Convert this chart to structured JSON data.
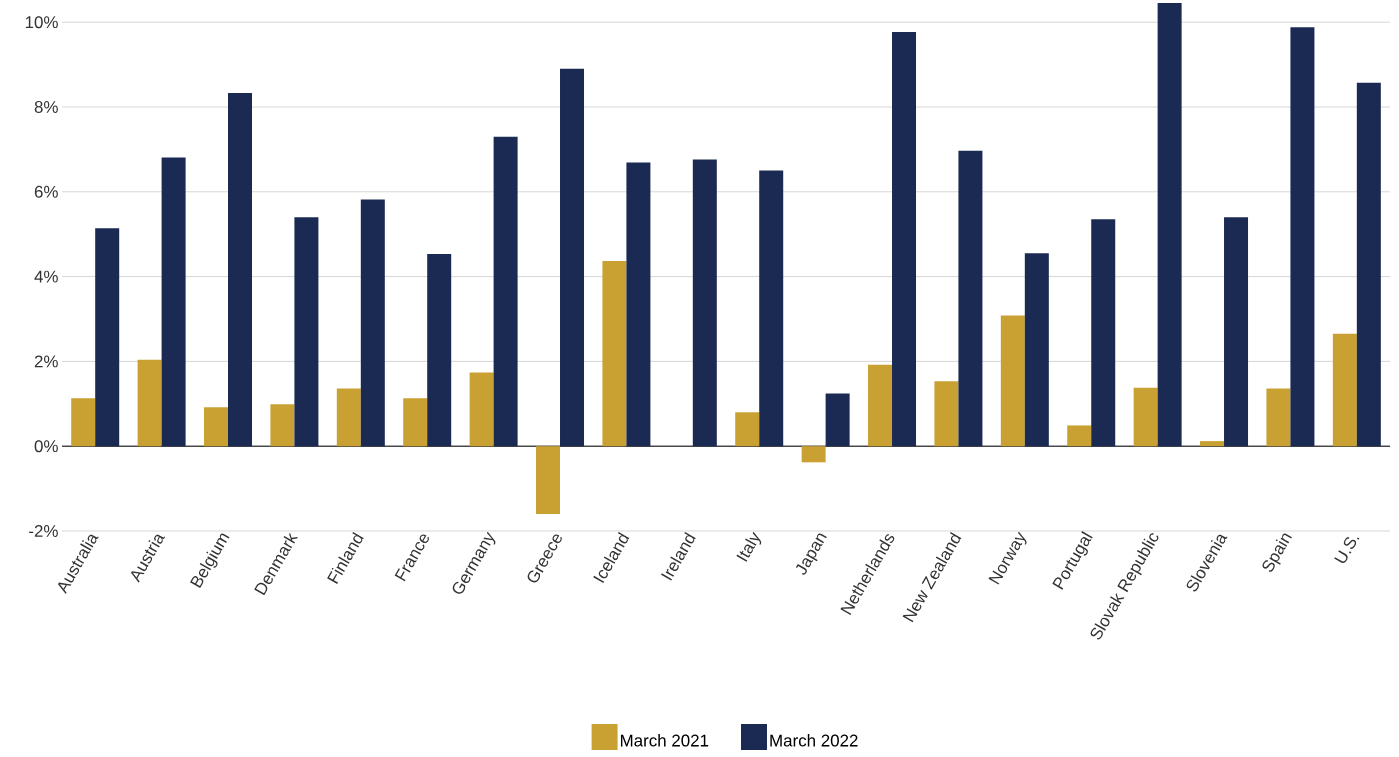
{
  "chart_data": {
    "type": "bar",
    "categories": [
      "Australia",
      "Austria",
      "Belgium",
      "Denmark",
      "Finland",
      "France",
      "Germany",
      "Greece",
      "Iceland",
      "Ireland",
      "Italy",
      "Japan",
      "Netherlands",
      "New Zealand",
      "Norway",
      "Portugal",
      "Slovak Republic",
      "Slovenia",
      "Spain",
      "U.S."
    ],
    "series": [
      {
        "name": "March 2021",
        "color": "#c9a133",
        "values": [
          1.13,
          2.04,
          0.92,
          0.99,
          1.36,
          1.13,
          1.74,
          -1.6,
          4.37,
          null,
          0.8,
          -0.38,
          1.92,
          1.53,
          3.08,
          0.49,
          1.38,
          0.12,
          1.36,
          2.65
        ]
      },
      {
        "name": "March 2022",
        "color": "#1b2a52",
        "values": [
          5.14,
          6.81,
          8.33,
          5.4,
          5.82,
          4.53,
          7.3,
          8.9,
          6.69,
          6.76,
          6.5,
          1.24,
          9.77,
          6.97,
          4.55,
          5.35,
          10.45,
          5.4,
          9.88,
          8.57
        ]
      }
    ],
    "ylim": [
      -2,
      10.5
    ],
    "yticks": [
      {
        "value": -2,
        "label": "-2%"
      },
      {
        "value": 0,
        "label": "0%"
      },
      {
        "value": 2,
        "label": "2%"
      },
      {
        "value": 4,
        "label": "4%"
      },
      {
        "value": 6,
        "label": "6%"
      },
      {
        "value": 8,
        "label": "8%"
      },
      {
        "value": 10,
        "label": "10%"
      }
    ],
    "grid": "y",
    "legend": "bottom"
  }
}
